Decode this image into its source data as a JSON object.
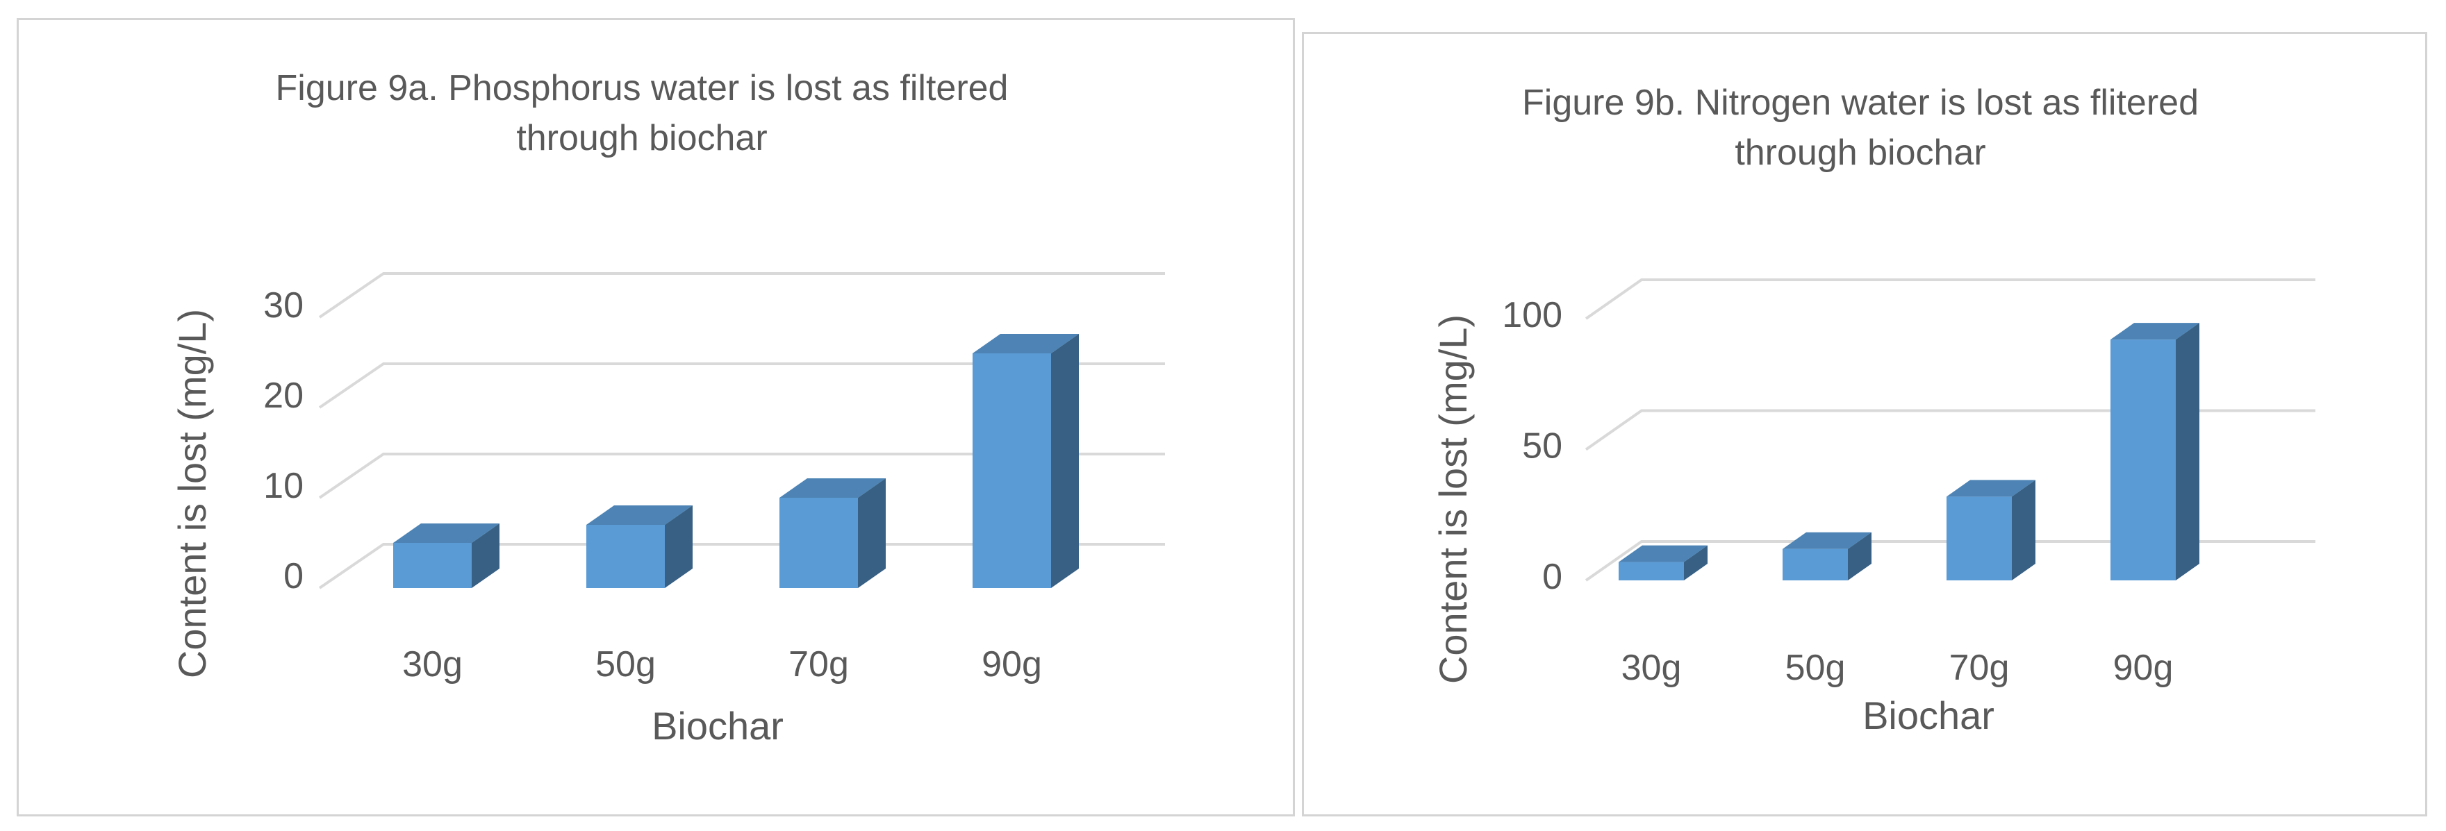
{
  "chart_data": [
    {
      "id": "a",
      "type": "bar",
      "title_lines": [
        "Figure 9a. Phosphorus water is lost  as filtered",
        "through biochar"
      ],
      "xlabel": "Biochar",
      "ylabel": "Content is lost (mg/L)",
      "categories": [
        "30g",
        "50g",
        "70g",
        "90g"
      ],
      "values": [
        5,
        7,
        10,
        26
      ],
      "ylim": [
        0,
        30
      ],
      "yticks": [
        "0",
        "10",
        "20",
        "30"
      ],
      "grid": true,
      "legend": "none",
      "bar_color": "#5b9bd5"
    },
    {
      "id": "b",
      "type": "bar",
      "title_lines": [
        "Figure 9b. Nitrogen water is lost as flitered",
        "through biochar"
      ],
      "xlabel": "Biochar",
      "ylabel": "Content is lost (mg/L)",
      "categories": [
        "30g",
        "50g",
        "70g",
        "90g"
      ],
      "values": [
        7,
        12,
        32,
        92
      ],
      "ylim": [
        0,
        100
      ],
      "yticks": [
        "0",
        "50",
        "100"
      ],
      "grid": true,
      "legend": "none",
      "bar_color": "#5b9bd5"
    }
  ]
}
